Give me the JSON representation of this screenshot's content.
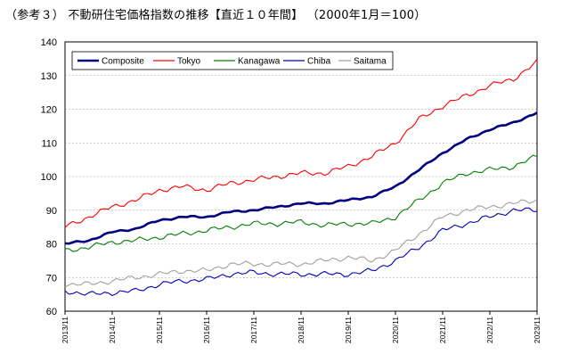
{
  "chart_data": {
    "type": "line",
    "title": "（参考３） 不動研住宅価格指数の推移【直近１０年間】 （2000年1月＝100）",
    "ylim": [
      60,
      140
    ],
    "yticks": [
      60,
      70,
      80,
      90,
      100,
      110,
      120,
      130,
      140
    ],
    "x_start": "2013-11",
    "x_end": "2023-11",
    "xticks": [
      "2013/11",
      "2014/11",
      "2015/11",
      "2016/11",
      "2017/11",
      "2018/11",
      "2019/11",
      "2020/11",
      "2021/11",
      "2022/11",
      "2023/11"
    ],
    "grid": true,
    "legend_position": "top-left",
    "anchor_dates": [
      "2013-11",
      "2014-05",
      "2014-11",
      "2015-05",
      "2015-11",
      "2016-05",
      "2016-11",
      "2017-05",
      "2017-11",
      "2018-05",
      "2018-11",
      "2019-05",
      "2019-11",
      "2020-05",
      "2020-11",
      "2021-05",
      "2021-11",
      "2022-05",
      "2022-11",
      "2023-05",
      "2023-11"
    ],
    "series": [
      {
        "name": "Composite",
        "color": "#000080",
        "values": [
          80,
          81,
          83.5,
          84.5,
          87,
          88,
          88,
          89.5,
          90,
          91,
          92,
          92,
          93,
          94,
          97,
          102,
          107,
          111,
          114,
          116,
          119
        ]
      },
      {
        "name": "Tokyo",
        "color": "#ff0000",
        "values": [
          85,
          88,
          91,
          93,
          96,
          97,
          96,
          98,
          99,
          100,
          101,
          101,
          103,
          106,
          110,
          117,
          121,
          124,
          127,
          129,
          134
        ]
      },
      {
        "name": "Kanagawa",
        "color": "#008000",
        "values": [
          78,
          79,
          80.5,
          81,
          82,
          83,
          84,
          85,
          86,
          86,
          86.5,
          85.5,
          86,
          86,
          88,
          93,
          98,
          101,
          102,
          103,
          106
        ]
      },
      {
        "name": "Chiba",
        "color": "#0000c0",
        "values": [
          66,
          65,
          65.5,
          66,
          68,
          69,
          69.5,
          71,
          71.5,
          71,
          71,
          71,
          71,
          72,
          75,
          79,
          84,
          86,
          88,
          90,
          90
        ]
      },
      {
        "name": "Saitama",
        "color": "#a0a0a0",
        "values": [
          68,
          68,
          69,
          70,
          71,
          72,
          72,
          74,
          74,
          74,
          74,
          75,
          76,
          75,
          78,
          83,
          88,
          90,
          91,
          92,
          93
        ]
      }
    ]
  }
}
